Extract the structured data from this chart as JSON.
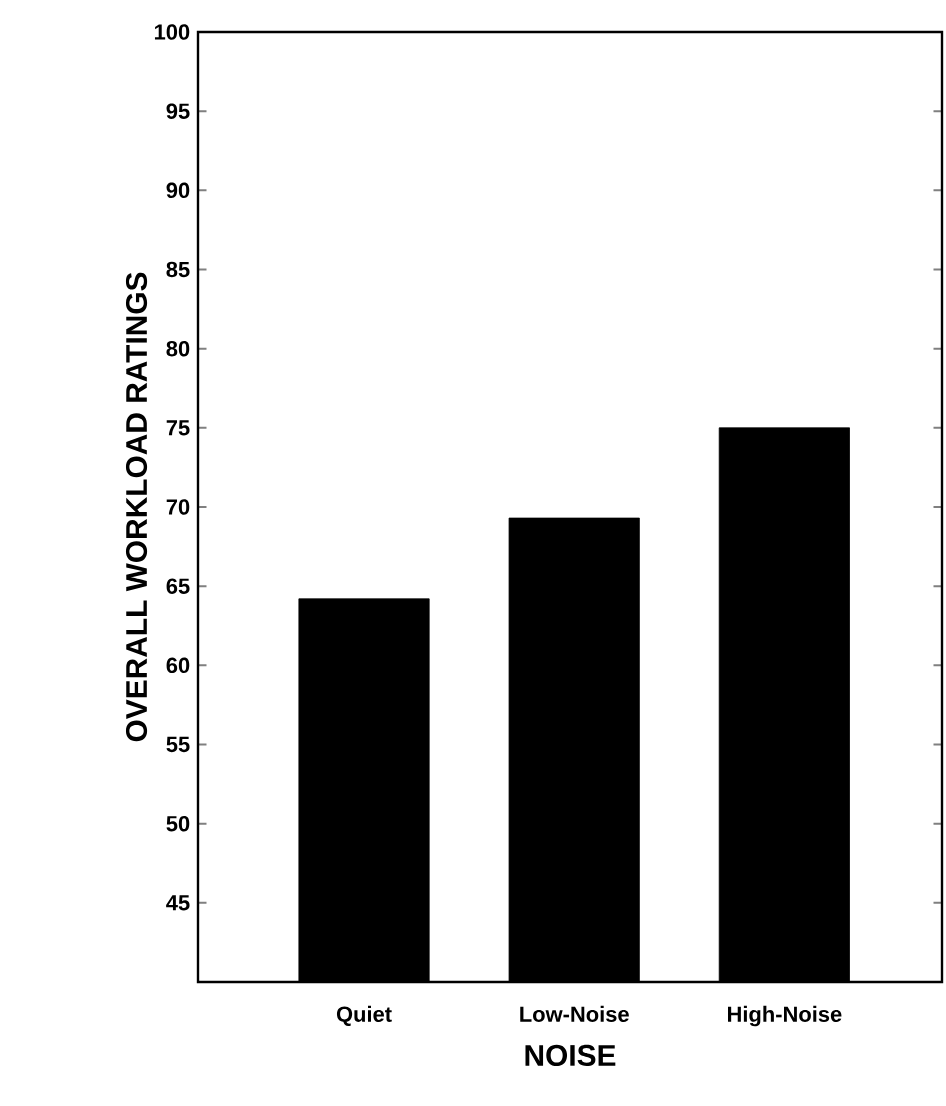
{
  "chart_data": {
    "type": "bar",
    "xlabel": "NOISE",
    "ylabel": "OVERALL WORKLOAD RATINGS",
    "categories": [
      "Quiet",
      "Low-Noise",
      "High-Noise"
    ],
    "values": [
      64.2,
      69.3,
      75.0
    ],
    "color": "#000000",
    "ylim": [
      40,
      100
    ],
    "yticks": [
      45,
      50,
      55,
      60,
      65,
      70,
      75,
      80,
      85,
      90,
      95,
      100
    ]
  }
}
